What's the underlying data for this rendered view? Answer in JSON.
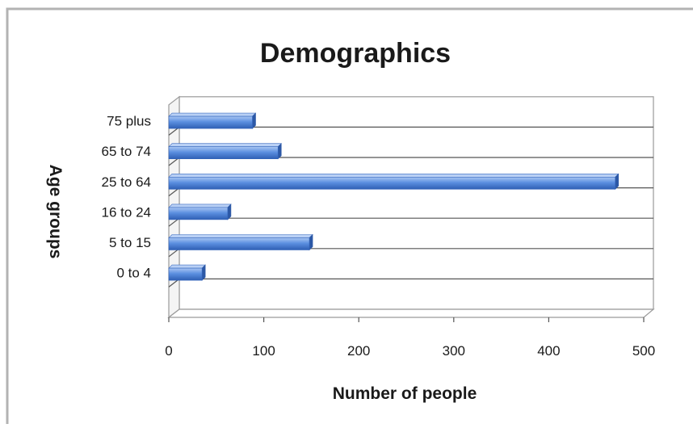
{
  "chart_data": {
    "type": "bar",
    "orientation": "horizontal",
    "title": "Demographics",
    "xlabel": "Number of people",
    "ylabel": "Age groups",
    "categories": [
      "0 to 4",
      "5 to 15",
      "16 to 24",
      "25 to 64",
      "65 to 74",
      "75 plus"
    ],
    "values": [
      35,
      148,
      62,
      470,
      115,
      88
    ],
    "xlim": [
      0,
      500
    ],
    "xticks": [
      "0",
      "100",
      "200",
      "300",
      "400",
      "500"
    ],
    "grid": true,
    "legend": "none",
    "bar_color": "#4a7fd6"
  }
}
